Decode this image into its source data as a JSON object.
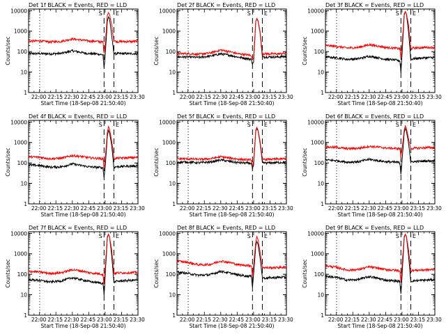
{
  "figure": {
    "x_tick_labels": [
      "22:00",
      "22:15",
      "22:30",
      "22:45",
      "23:00",
      "23:15",
      "23:30"
    ],
    "x_tick_minutes": [
      0,
      15,
      30,
      45,
      60,
      75,
      90
    ],
    "y_tick_labels": [
      "1",
      "10",
      "100",
      "1000",
      "10000"
    ],
    "y_tick_values": [
      1,
      10,
      100,
      1000,
      10000
    ],
    "ylabel": "Counts/sec",
    "xlabel": "Start Time (18-Sep-08 21:50:40)",
    "xlim_minutes_after_start": [
      0,
      100
    ],
    "ylim": [
      1,
      12000
    ],
    "y_scale": "log",
    "saa_labels": [
      "S",
      "E"
    ],
    "colors": {
      "events": "#000000",
      "lld": "#ff0000",
      "axes": "#000000"
    }
  },
  "chart_data": [
    {
      "type": "line",
      "title": "Det 1f BLACK = Events, RED = LLD",
      "xlabel": "Start Time (18-Sep-08 21:50:40)",
      "ylabel": "Counts/sec",
      "y_scale": "log",
      "ylim": [
        1,
        12000
      ],
      "x_axis": "minutes after 21:50:40",
      "dotted_markers_minutes": [
        10.2,
        100
      ],
      "dashed_markers_minutes": [
        69,
        78
      ],
      "series": [
        {
          "name": "Events",
          "color": "#000000",
          "x": [
            0,
            10,
            20,
            30,
            40,
            50,
            55,
            62,
            68,
            69,
            70,
            72,
            73,
            74,
            76,
            78,
            80,
            86,
            92,
            100
          ],
          "y": [
            80,
            80,
            78,
            82,
            110,
            88,
            80,
            78,
            70,
            15,
            60,
            3000,
            5000,
            4000,
            600,
            80,
            80,
            80,
            80,
            80
          ]
        },
        {
          "name": "LLD",
          "color": "#ff0000",
          "x": [
            0,
            10,
            20,
            30,
            40,
            50,
            55,
            62,
            68,
            69,
            70,
            72,
            73,
            74,
            76,
            78,
            80,
            86,
            92,
            100
          ],
          "y": [
            330,
            330,
            300,
            320,
            420,
            360,
            330,
            320,
            290,
            80,
            200,
            6000,
            8000,
            6500,
            2000,
            350,
            310,
            310,
            310,
            320
          ]
        }
      ]
    },
    {
      "type": "line",
      "title": "Det 2f BLACK = Events, RED = LLD",
      "xlabel": "Start Time (18-Sep-08 21:50:40)",
      "ylabel": "Counts/sec",
      "y_scale": "log",
      "ylim": [
        1,
        12000
      ],
      "x_axis": "minutes after 21:50:40",
      "dotted_markers_minutes": [
        10.2,
        100
      ],
      "dashed_markers_minutes": [
        69,
        78
      ],
      "series": [
        {
          "name": "Events",
          "color": "#000000",
          "x": [
            0,
            10,
            20,
            30,
            40,
            50,
            55,
            62,
            68,
            69,
            70,
            72,
            73,
            74,
            76,
            78,
            80,
            86,
            92,
            100
          ],
          "y": [
            55,
            55,
            52,
            60,
            78,
            64,
            55,
            48,
            42,
            25,
            30,
            3000,
            4000,
            3200,
            800,
            55,
            55,
            55,
            55,
            58
          ]
        },
        {
          "name": "LLD",
          "color": "#ff0000",
          "x": [
            0,
            10,
            20,
            30,
            40,
            50,
            55,
            62,
            68,
            69,
            70,
            72,
            73,
            74,
            76,
            78,
            80,
            86,
            92,
            100
          ],
          "y": [
            80,
            80,
            75,
            85,
            120,
            95,
            80,
            72,
            65,
            40,
            50,
            3000,
            4200,
            3400,
            900,
            80,
            78,
            78,
            78,
            82
          ]
        }
      ]
    },
    {
      "type": "line",
      "title": "Det 3f BLACK = Events, RED = LLD",
      "xlabel": "Start Time (18-Sep-08 21:50:40)",
      "ylabel": "Counts/sec",
      "y_scale": "log",
      "ylim": [
        1,
        12000
      ],
      "x_axis": "minutes after 21:50:40",
      "dotted_markers_minutes": [
        10.2,
        100
      ],
      "dashed_markers_minutes": [
        69,
        78
      ],
      "series": [
        {
          "name": "Events",
          "color": "#000000",
          "x": [
            0,
            10,
            20,
            30,
            40,
            50,
            55,
            62,
            68,
            69,
            70,
            72,
            73,
            74,
            76,
            78,
            80,
            86,
            92,
            100
          ],
          "y": [
            55,
            50,
            42,
            45,
            60,
            48,
            42,
            40,
            36,
            10,
            70,
            6000,
            9000,
            7000,
            900,
            40,
            45,
            48,
            50,
            52
          ]
        },
        {
          "name": "LLD",
          "color": "#ff0000",
          "x": [
            0,
            10,
            20,
            30,
            40,
            50,
            55,
            62,
            68,
            69,
            70,
            72,
            73,
            74,
            76,
            78,
            80,
            86,
            92,
            100
          ],
          "y": [
            200,
            180,
            150,
            160,
            220,
            180,
            160,
            150,
            140,
            50,
            200,
            7000,
            9000,
            7000,
            2000,
            140,
            150,
            155,
            160,
            160
          ]
        }
      ]
    },
    {
      "type": "line",
      "title": "Det 4f BLACK = Events, RED = LLD",
      "xlabel": "Start Time (18-Sep-08 21:50:40)",
      "ylabel": "Counts/sec",
      "y_scale": "log",
      "ylim": [
        1,
        12000
      ],
      "x_axis": "minutes after 21:50:40",
      "dotted_markers_minutes": [
        10.2,
        100
      ],
      "dashed_markers_minutes": [
        69,
        78
      ],
      "series": [
        {
          "name": "Events",
          "color": "#000000",
          "x": [
            0,
            10,
            20,
            30,
            40,
            50,
            55,
            62,
            68,
            69,
            70,
            72,
            73,
            74,
            76,
            78,
            80,
            86,
            92,
            100
          ],
          "y": [
            80,
            75,
            62,
            65,
            90,
            72,
            65,
            62,
            58,
            20,
            60,
            2000,
            4000,
            3000,
            700,
            60,
            65,
            68,
            70,
            72
          ]
        },
        {
          "name": "LLD",
          "color": "#ff0000",
          "x": [
            0,
            10,
            20,
            30,
            40,
            50,
            55,
            62,
            68,
            69,
            70,
            72,
            73,
            74,
            76,
            78,
            80,
            86,
            92,
            100
          ],
          "y": [
            200,
            190,
            160,
            170,
            230,
            200,
            180,
            170,
            160,
            60,
            150,
            3000,
            6000,
            4500,
            1200,
            160,
            170,
            175,
            180,
            185
          ]
        }
      ]
    },
    {
      "type": "line",
      "title": "Det 5f BLACK = Events, RED = LLD",
      "xlabel": "Start Time (18-Sep-08 21:50:40)",
      "ylabel": "Counts/sec",
      "y_scale": "log",
      "ylim": [
        1,
        12000
      ],
      "x_axis": "minutes after 21:50:40",
      "dotted_markers_minutes": [
        10.2,
        100
      ],
      "dashed_markers_minutes": [
        69,
        78
      ],
      "series": [
        {
          "name": "Events",
          "color": "#000000",
          "x": [
            0,
            10,
            20,
            30,
            40,
            50,
            55,
            62,
            68,
            69,
            70,
            72,
            73,
            74,
            76,
            78,
            80,
            86,
            92,
            100
          ],
          "y": [
            110,
            110,
            102,
            110,
            140,
            115,
            105,
            100,
            95,
            50,
            80,
            3500,
            5000,
            3800,
            900,
            100,
            100,
            102,
            105,
            108
          ]
        },
        {
          "name": "LLD",
          "color": "#ff0000",
          "x": [
            0,
            10,
            20,
            30,
            40,
            50,
            55,
            62,
            68,
            69,
            70,
            72,
            73,
            74,
            76,
            78,
            80,
            86,
            92,
            100
          ],
          "y": [
            160,
            160,
            150,
            160,
            200,
            170,
            155,
            145,
            140,
            70,
            120,
            4000,
            5500,
            4200,
            1100,
            145,
            150,
            150,
            155,
            160
          ]
        }
      ]
    },
    {
      "type": "line",
      "title": "Det 6f BLACK = Events, RED = LLD",
      "xlabel": "Start Time (18-Sep-08 21:50:40)",
      "ylabel": "Counts/sec",
      "y_scale": "log",
      "ylim": [
        1,
        12000
      ],
      "x_axis": "minutes after 21:50:40",
      "dotted_markers_minutes": [
        10.2,
        100
      ],
      "dashed_markers_minutes": [
        69,
        78
      ],
      "series": [
        {
          "name": "Events",
          "color": "#000000",
          "x": [
            0,
            10,
            20,
            30,
            40,
            50,
            55,
            62,
            68,
            69,
            70,
            72,
            73,
            74,
            76,
            78,
            80,
            86,
            92,
            100
          ],
          "y": [
            140,
            130,
            110,
            115,
            150,
            125,
            115,
            110,
            105,
            30,
            120,
            3000,
            5000,
            3600,
            900,
            110,
            115,
            120,
            125,
            128
          ]
        },
        {
          "name": "LLD",
          "color": "#ff0000",
          "x": [
            0,
            10,
            20,
            30,
            40,
            50,
            55,
            62,
            68,
            69,
            70,
            72,
            73,
            74,
            76,
            78,
            80,
            86,
            92,
            100
          ],
          "y": [
            600,
            580,
            500,
            520,
            650,
            580,
            540,
            520,
            500,
            200,
            450,
            4000,
            6500,
            5000,
            1500,
            500,
            520,
            540,
            560,
            560
          ]
        }
      ]
    },
    {
      "type": "line",
      "title": "Det 7f BLACK = Events, RED = LLD",
      "xlabel": "Start Time (18-Sep-08 21:50:40)",
      "ylabel": "Counts/sec",
      "y_scale": "log",
      "ylim": [
        1,
        12000
      ],
      "x_axis": "minutes after 21:50:40",
      "dotted_markers_minutes": [
        10.2,
        100
      ],
      "dashed_markers_minutes": [
        69,
        78
      ],
      "series": [
        {
          "name": "Events",
          "color": "#000000",
          "x": [
            0,
            10,
            20,
            30,
            40,
            50,
            55,
            62,
            68,
            69,
            70,
            72,
            73,
            74,
            76,
            78,
            80,
            86,
            92,
            100
          ],
          "y": [
            55,
            50,
            42,
            48,
            68,
            52,
            45,
            40,
            36,
            10,
            80,
            6000,
            9000,
            7000,
            800,
            40,
            45,
            48,
            50,
            52
          ]
        },
        {
          "name": "LLD",
          "color": "#ff0000",
          "x": [
            0,
            10,
            20,
            30,
            40,
            50,
            55,
            62,
            68,
            69,
            70,
            72,
            73,
            74,
            76,
            78,
            80,
            86,
            92,
            100
          ],
          "y": [
            140,
            130,
            110,
            120,
            170,
            140,
            120,
            110,
            100,
            30,
            200,
            7000,
            9000,
            7000,
            1500,
            110,
            115,
            118,
            120,
            125
          ]
        }
      ]
    },
    {
      "type": "line",
      "title": "Det 8f BLACK = Events, RED = LLD",
      "xlabel": "Start Time (18-Sep-08 21:50:40)",
      "ylabel": "Counts/sec",
      "y_scale": "log",
      "ylim": [
        1,
        12000
      ],
      "x_axis": "minutes after 21:50:40",
      "dotted_markers_minutes": [
        10.2,
        100
      ],
      "dashed_markers_minutes": [
        69,
        78
      ],
      "series": [
        {
          "name": "Events",
          "color": "#000000",
          "x": [
            0,
            10,
            20,
            30,
            40,
            50,
            55,
            62,
            68,
            69,
            70,
            72,
            73,
            74,
            76,
            78,
            80,
            86,
            92,
            100
          ],
          "y": [
            130,
            110,
            90,
            95,
            140,
            110,
            95,
            85,
            80,
            25,
            100,
            2500,
            4000,
            3000,
            600,
            70,
            65,
            68,
            70,
            72
          ]
        },
        {
          "name": "LLD",
          "color": "#ff0000",
          "x": [
            0,
            10,
            20,
            30,
            40,
            50,
            55,
            62,
            68,
            69,
            70,
            72,
            73,
            74,
            76,
            78,
            80,
            86,
            92,
            100
          ],
          "y": [
            450,
            380,
            290,
            300,
            450,
            360,
            300,
            280,
            260,
            80,
            250,
            4000,
            7000,
            5000,
            1200,
            230,
            210,
            210,
            215,
            220
          ]
        }
      ]
    },
    {
      "type": "line",
      "title": "Det 9f BLACK = Events, RED = LLD",
      "xlabel": "Start Time (18-Sep-08 21:50:40)",
      "ylabel": "Counts/sec",
      "y_scale": "log",
      "ylim": [
        1,
        12000
      ],
      "x_axis": "minutes after 21:50:40",
      "dotted_markers_minutes": [
        10.2,
        100
      ],
      "dashed_markers_minutes": [
        69,
        78
      ],
      "series": [
        {
          "name": "Events",
          "color": "#000000",
          "x": [
            0,
            10,
            20,
            30,
            40,
            50,
            55,
            62,
            68,
            69,
            70,
            72,
            73,
            74,
            76,
            78,
            80,
            86,
            92,
            100
          ],
          "y": [
            80,
            70,
            52,
            55,
            78,
            60,
            52,
            48,
            45,
            10,
            80,
            6000,
            9000,
            7000,
            800,
            45,
            48,
            50,
            52,
            55
          ]
        },
        {
          "name": "LLD",
          "color": "#ff0000",
          "x": [
            0,
            10,
            20,
            30,
            40,
            50,
            55,
            62,
            68,
            69,
            70,
            72,
            73,
            74,
            76,
            78,
            80,
            86,
            92,
            100
          ],
          "y": [
            260,
            220,
            160,
            170,
            230,
            190,
            170,
            160,
            150,
            40,
            250,
            7000,
            9000,
            7000,
            1500,
            150,
            155,
            160,
            165,
            170
          ]
        }
      ]
    }
  ]
}
